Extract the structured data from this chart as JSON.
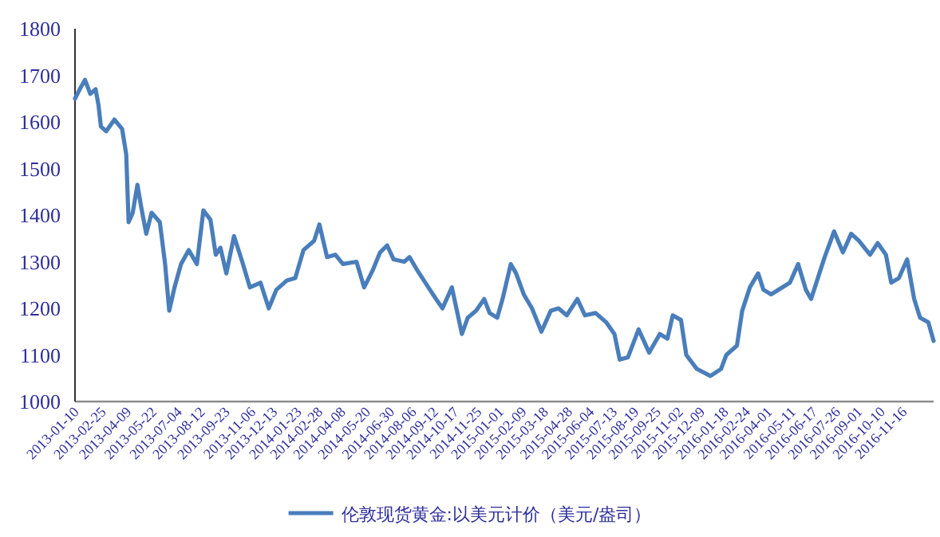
{
  "chart_data": {
    "type": "line",
    "x": [
      "2013-01-02",
      "2013-01-10",
      "2013-01-19",
      "2013-01-28",
      "2013-02-06",
      "2013-02-11",
      "2013-02-15",
      "2013-02-24",
      "2013-03-10",
      "2013-03-23",
      "2013-03-30",
      "2013-04-03",
      "2013-04-10",
      "2013-04-18",
      "2013-04-24",
      "2013-05-03",
      "2013-05-12",
      "2013-05-26",
      "2013-06-04",
      "2013-06-11",
      "2013-06-20",
      "2013-07-01",
      "2013-07-14",
      "2013-07-28",
      "2013-08-08",
      "2013-08-20",
      "2013-08-29",
      "2013-09-06",
      "2013-09-16",
      "2013-09-29",
      "2013-10-13",
      "2013-10-26",
      "2013-11-13",
      "2013-11-27",
      "2013-12-10",
      "2013-12-28",
      "2014-01-11",
      "2014-01-25",
      "2014-02-12",
      "2014-02-21",
      "2014-03-06",
      "2014-03-20",
      "2014-04-02",
      "2014-04-25",
      "2014-05-08",
      "2014-05-22",
      "2014-06-04",
      "2014-06-16",
      "2014-06-27",
      "2014-07-15",
      "2014-07-24",
      "2014-08-07",
      "2014-08-25",
      "2014-09-07",
      "2014-09-18",
      "2014-10-04",
      "2014-10-21",
      "2014-10-31",
      "2014-11-14",
      "2014-11-28",
      "2014-12-07",
      "2014-12-20",
      "2014-12-29",
      "2015-01-12",
      "2015-01-21",
      "2015-02-03",
      "2015-02-17",
      "2015-03-05",
      "2015-03-21",
      "2015-04-03",
      "2015-04-17",
      "2015-05-05",
      "2015-05-18",
      "2015-06-05",
      "2015-06-23",
      "2015-07-07",
      "2015-07-16",
      "2015-07-30",
      "2015-08-17",
      "2015-09-04",
      "2015-09-22",
      "2015-10-05",
      "2015-10-14",
      "2015-10-28",
      "2015-11-06",
      "2015-11-24",
      "2015-12-17",
      "2016-01-04",
      "2016-01-13",
      "2016-01-31",
      "2016-02-09",
      "2016-02-22",
      "2016-03-07",
      "2016-03-16",
      "2016-03-29",
      "2016-04-17",
      "2016-04-30",
      "2016-05-14",
      "2016-05-27",
      "2016-06-05",
      "2016-06-19",
      "2016-06-28",
      "2016-07-14",
      "2016-07-29",
      "2016-08-12",
      "2016-08-25",
      "2016-09-13",
      "2016-09-26",
      "2016-10-10",
      "2016-10-19",
      "2016-11-01",
      "2016-11-15",
      "2016-11-27",
      "2016-12-07",
      "2016-12-21",
      "2016-12-30"
    ],
    "series": [
      {
        "name": "伦敦现货黄金:以美元计价（美元/盎司）",
        "color": "#4a7ebb",
        "values": [
          1650,
          1670,
          1690,
          1660,
          1670,
          1635,
          1590,
          1580,
          1605,
          1585,
          1530,
          1385,
          1405,
          1465,
          1420,
          1360,
          1405,
          1385,
          1295,
          1195,
          1245,
          1295,
          1325,
          1295,
          1410,
          1390,
          1315,
          1330,
          1275,
          1355,
          1300,
          1245,
          1255,
          1200,
          1240,
          1260,
          1265,
          1325,
          1345,
          1380,
          1310,
          1315,
          1295,
          1300,
          1245,
          1280,
          1320,
          1335,
          1305,
          1300,
          1310,
          1280,
          1245,
          1220,
          1200,
          1245,
          1145,
          1180,
          1195,
          1220,
          1190,
          1180,
          1220,
          1295,
          1275,
          1230,
          1200,
          1150,
          1195,
          1200,
          1185,
          1220,
          1185,
          1190,
          1170,
          1145,
          1090,
          1095,
          1155,
          1105,
          1145,
          1135,
          1185,
          1175,
          1100,
          1070,
          1055,
          1070,
          1100,
          1120,
          1195,
          1245,
          1275,
          1240,
          1230,
          1245,
          1255,
          1295,
          1240,
          1220,
          1275,
          1310,
          1365,
          1320,
          1360,
          1345,
          1315,
          1340,
          1315,
          1255,
          1265,
          1305,
          1220,
          1180,
          1170,
          1130
        ]
      }
    ],
    "xlim": [
      "2013-01-02",
      "2016-12-30"
    ],
    "xticks": [
      "2013-01-10",
      "2013-02-25",
      "2013-04-09",
      "2013-05-22",
      "2013-07-04",
      "2013-08-12",
      "2013-09-23",
      "2013-11-06",
      "2013-12-13",
      "2014-01-23",
      "2014-02-28",
      "2014-04-08",
      "2014-05-20",
      "2014-06-30",
      "2014-08-06",
      "2014-09-12",
      "2014-10-17",
      "2014-11-25",
      "2015-01-01",
      "2015-02-09",
      "2015-03-18",
      "2015-04-28",
      "2015-06-04",
      "2015-07-13",
      "2015-08-19",
      "2015-09-25",
      "2015-11-02",
      "2015-12-09",
      "2016-01-18",
      "2016-02-24",
      "2016-04-01",
      "2016-05-11",
      "2016-06-17",
      "2016-07-26",
      "2016-09-01",
      "2016-10-10",
      "2016-11-16"
    ],
    "ylim": [
      1000,
      1800
    ],
    "yticks": [
      1000,
      1100,
      1200,
      1300,
      1400,
      1500,
      1600,
      1700,
      1800
    ],
    "legend": "bottom",
    "line_style": "solid"
  }
}
